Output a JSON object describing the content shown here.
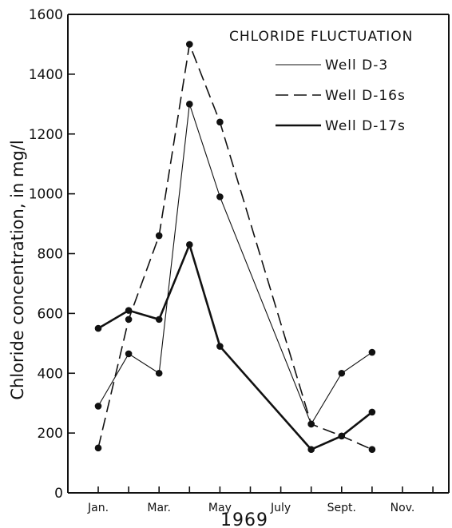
{
  "chart_data": {
    "type": "line",
    "title": "CHLORIDE FLUCTUATION",
    "xlabel": "1969",
    "ylabel": "Chloride concentration, in mg/l",
    "ylim": [
      0,
      1600
    ],
    "yticks": [
      0,
      200,
      400,
      600,
      800,
      1000,
      1200,
      1400,
      1600
    ],
    "xlim": [
      1,
      13
    ],
    "month_labels": [
      {
        "label": "Jan.",
        "month": 1
      },
      {
        "label": "Mar.",
        "month": 3
      },
      {
        "label": "May",
        "month": 5
      },
      {
        "label": "July",
        "month": 7
      },
      {
        "label": "Sept.",
        "month": 9
      },
      {
        "label": "Nov.",
        "month": 11
      }
    ],
    "series": [
      {
        "name": "Well D-3",
        "style": "thin",
        "x": [
          1,
          2,
          3,
          4,
          5,
          8,
          9,
          10
        ],
        "y": [
          290,
          465,
          400,
          1300,
          990,
          230,
          400,
          470
        ]
      },
      {
        "name": "Well D-16s",
        "style": "dashed",
        "x": [
          1,
          2,
          3,
          4,
          5,
          8,
          9,
          10
        ],
        "y": [
          150,
          580,
          860,
          1500,
          1240,
          230,
          190,
          145
        ]
      },
      {
        "name": "Well D-17s",
        "style": "thick",
        "x": [
          1,
          2,
          3,
          4,
          5,
          8,
          9,
          10
        ],
        "y": [
          550,
          610,
          580,
          830,
          490,
          145,
          190,
          270
        ]
      }
    ],
    "legend_position": "top-right",
    "grid": false
  }
}
